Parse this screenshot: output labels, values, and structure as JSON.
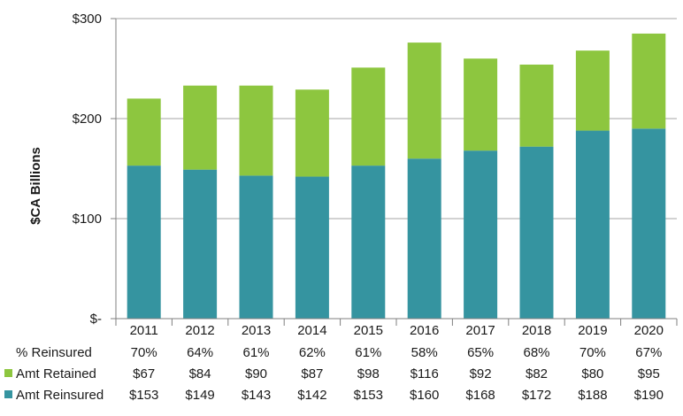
{
  "chart_data": {
    "type": "bar",
    "stacked": true,
    "categories": [
      "2011",
      "2012",
      "2013",
      "2014",
      "2015",
      "2016",
      "2017",
      "2018",
      "2019",
      "2020"
    ],
    "series": [
      {
        "name": "Amt Reinsured",
        "color": "#3594A0",
        "values": [
          153,
          149,
          143,
          142,
          153,
          160,
          168,
          172,
          188,
          190
        ]
      },
      {
        "name": "Amt Retained",
        "color": "#8DC63F",
        "values": [
          67,
          84,
          90,
          87,
          98,
          116,
          92,
          82,
          80,
          95
        ]
      }
    ],
    "ylabel": "$CA Billions",
    "ylim": [
      0,
      300
    ],
    "yticks": [
      0,
      100,
      200,
      300
    ],
    "ytick_labels": [
      "$-",
      "$100",
      "$200",
      "$300"
    ],
    "grid": true,
    "legend": "in data table",
    "data_table": {
      "rows": [
        {
          "label": "% Reinsured",
          "marker": "",
          "values": [
            "70%",
            "64%",
            "61%",
            "62%",
            "61%",
            "58%",
            "65%",
            "68%",
            "70%",
            "67%"
          ]
        },
        {
          "label": "Amt Retained",
          "marker": "#8DC63F",
          "values": [
            "$67",
            "$84",
            "$90",
            "$87",
            "$98",
            "$116",
            "$92",
            "$82",
            "$80",
            "$95"
          ]
        },
        {
          "label": "Amt Reinsured",
          "marker": "#3594A0",
          "values": [
            "$153",
            "$149",
            "$143",
            "$142",
            "$153",
            "$160",
            "$168",
            "$172",
            "$188",
            "$190"
          ]
        }
      ]
    }
  }
}
